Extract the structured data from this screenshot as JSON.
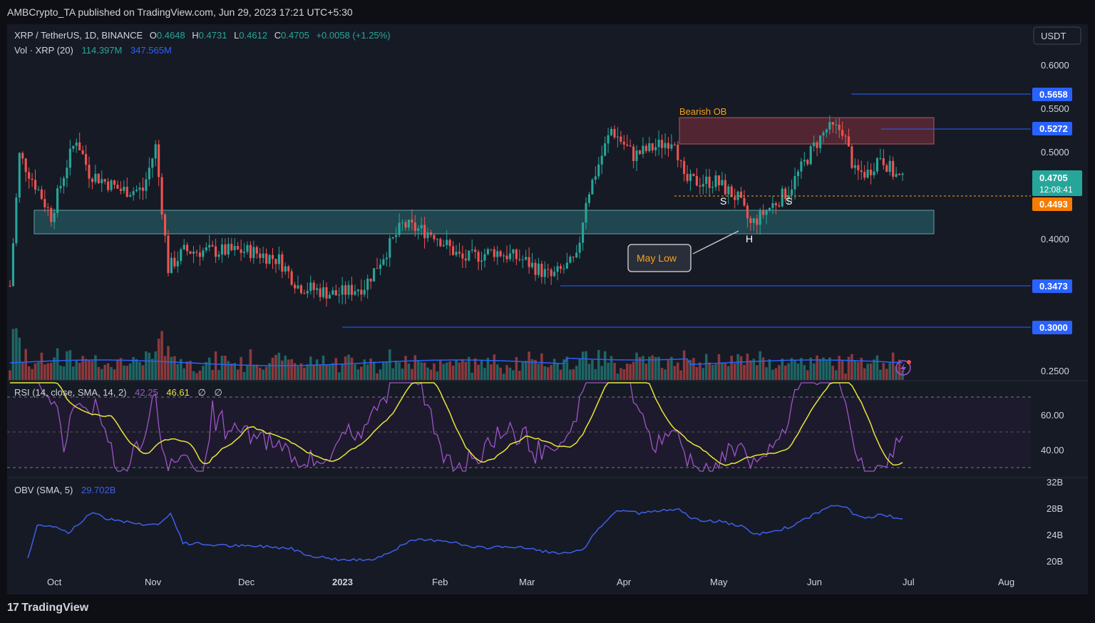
{
  "header": {
    "published": "AMBCrypto_TA published on TradingView.com, Jun 29, 2023 17:21 UTC+5:30"
  },
  "legend": {
    "symbol": "XRP / TetherUS, 1D, BINANCE",
    "o_label": "O",
    "o": "0.4648",
    "h_label": "H",
    "h": "0.4731",
    "l_label": "L",
    "l": "0.4612",
    "c_label": "C",
    "c": "0.4705",
    "change": "+0.0058 (+1.25%)",
    "vol_label": "Vol · XRP (20)",
    "vol1": "114.397M",
    "vol2": "347.565M",
    "rsi_label": "RSI (14, close, SMA, 14, 2)",
    "rsi1": "42.25",
    "rsi2": "46.61",
    "rsi3": "∅",
    "rsi4": "∅",
    "obv_label": "OBV (SMA, 5)",
    "obv1": "29.702B"
  },
  "currency_button": "USDT",
  "price_axis": [
    "0.6000",
    "0.5500",
    "0.5000",
    "0.4000",
    "0.2500"
  ],
  "price_tags": {
    "t5658": "0.5658",
    "t5272": "0.5272",
    "t4705": "0.4705",
    "countdown": "12:08:41",
    "t4493": "0.4493",
    "t3473": "0.3473",
    "t3000": "0.3000"
  },
  "rsi_axis": [
    "60.00",
    "40.00"
  ],
  "obv_axis": [
    "32B",
    "28B",
    "24B",
    "20B"
  ],
  "time_axis": [
    "Oct",
    "Nov",
    "Dec",
    "2023",
    "Feb",
    "Mar",
    "Apr",
    "May",
    "Jun",
    "Jul",
    "Aug"
  ],
  "annotations": {
    "bearish_ob": "Bearish OB",
    "may_low": "May Low",
    "s1": "S",
    "s2": "S",
    "h": "H"
  },
  "footer": {
    "brand": "TradingView"
  },
  "colors": {
    "up": "#26a69a",
    "down": "#ef5350",
    "line_blue": "#2962ff",
    "support_zone": "#2a6b73",
    "bearish_ob": "#7a2f3c",
    "rsi_line": "#9c56c6",
    "rsi_ma": "#e6e63a",
    "obv": "#3f5fe8",
    "vol_ma": "#2962ff"
  },
  "chart_data": {
    "type": "candlestick",
    "interval": "1D",
    "x": [
      "2022-09-20",
      "2023-06-29"
    ],
    "ylim": [
      0.24,
      0.62
    ],
    "price_path": [
      [
        "2022-09-20",
        0.35
      ],
      [
        "2022-09-23",
        0.5
      ],
      [
        "2022-09-29",
        0.46
      ],
      [
        "2022-10-03",
        0.43
      ],
      [
        "2022-10-08",
        0.49
      ],
      [
        "2022-10-11",
        0.52
      ],
      [
        "2022-10-15",
        0.48
      ],
      [
        "2022-10-25",
        0.46
      ],
      [
        "2022-11-01",
        0.46
      ],
      [
        "2022-11-05",
        0.51
      ],
      [
        "2022-11-09",
        0.37
      ],
      [
        "2022-11-14",
        0.39
      ],
      [
        "2022-11-25",
        0.39
      ],
      [
        "2022-12-05",
        0.39
      ],
      [
        "2022-12-14",
        0.38
      ],
      [
        "2022-12-20",
        0.35
      ],
      [
        "2023-01-01",
        0.34
      ],
      [
        "2023-01-10",
        0.35
      ],
      [
        "2023-01-22",
        0.42
      ],
      [
        "2023-02-01",
        0.41
      ],
      [
        "2023-02-10",
        0.38
      ],
      [
        "2023-02-20",
        0.39
      ],
      [
        "2023-03-01",
        0.38
      ],
      [
        "2023-03-10",
        0.36
      ],
      [
        "2023-03-18",
        0.38
      ],
      [
        "2023-03-21",
        0.45
      ],
      [
        "2023-03-29",
        0.53
      ],
      [
        "2023-04-05",
        0.5
      ],
      [
        "2023-04-12",
        0.51
      ],
      [
        "2023-04-18",
        0.52
      ],
      [
        "2023-04-21",
        0.47
      ],
      [
        "2023-05-01",
        0.47
      ],
      [
        "2023-05-08",
        0.45
      ],
      [
        "2023-05-12",
        0.42
      ],
      [
        "2023-05-18",
        0.44
      ],
      [
        "2023-05-24",
        0.46
      ],
      [
        "2023-06-01",
        0.51
      ],
      [
        "2023-06-05",
        0.53
      ],
      [
        "2023-06-10",
        0.53
      ],
      [
        "2023-06-14",
        0.48
      ],
      [
        "2023-06-18",
        0.48
      ],
      [
        "2023-06-22",
        0.5
      ],
      [
        "2023-06-26",
        0.48
      ],
      [
        "2023-06-29",
        0.4705
      ]
    ],
    "horizontal_levels": [
      0.5658,
      0.5272,
      0.4493,
      0.3473,
      0.3
    ],
    "zones": [
      {
        "name": "Bearish OB",
        "from": "2023-04-18",
        "to": "2023-06-29",
        "low": 0.509,
        "high": 0.538
      },
      {
        "name": "support",
        "from": "2022-09-23",
        "to": "2023-06-29",
        "low": 0.407,
        "high": 0.434
      }
    ],
    "rsi_ylim": [
      20,
      80
    ],
    "rsi_last": 42.25,
    "rsi_ma_last": 46.61,
    "obv_unit": "B",
    "obv_last": 29.702
  }
}
